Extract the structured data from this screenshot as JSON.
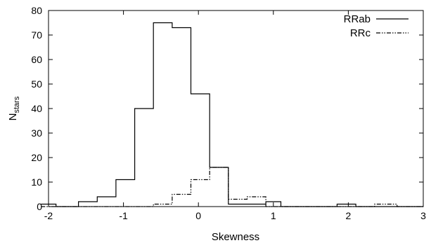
{
  "chart_data": {
    "type": "histogram",
    "xlabel": "Skewness",
    "ylabel": {
      "main": "N",
      "sub": "stars"
    },
    "xlim": [
      -2,
      3
    ],
    "ylim": [
      0,
      80
    ],
    "xticks": [
      "-2",
      "-1",
      "0",
      "1",
      "2",
      "3"
    ],
    "yticks": [
      "0",
      "10",
      "20",
      "30",
      "40",
      "50",
      "60",
      "70",
      "80"
    ],
    "legend_position": "top-right",
    "grid": false,
    "bin_edges": [
      -2.1,
      -1.9,
      -1.6,
      -1.35,
      -1.1,
      -0.85,
      -0.6,
      -0.35,
      -0.1,
      0.15,
      0.4,
      0.65,
      0.9,
      1.1,
      1.35,
      1.85,
      2.1,
      2.35,
      2.65,
      3.0
    ],
    "series": [
      {
        "name": "RRab",
        "style": "solid",
        "color": "#000000",
        "values": [
          1,
          0,
          2,
          4,
          11,
          40,
          75,
          73,
          46,
          16,
          1,
          1,
          2,
          0,
          0,
          1,
          0,
          0,
          0
        ]
      },
      {
        "name": "RRc",
        "style": "dash-dot",
        "color": "#000000",
        "values": [
          0,
          0,
          0,
          0,
          0,
          0,
          1,
          5,
          11,
          16,
          3,
          4,
          0,
          0,
          0,
          0,
          0,
          1,
          0
        ]
      }
    ]
  }
}
